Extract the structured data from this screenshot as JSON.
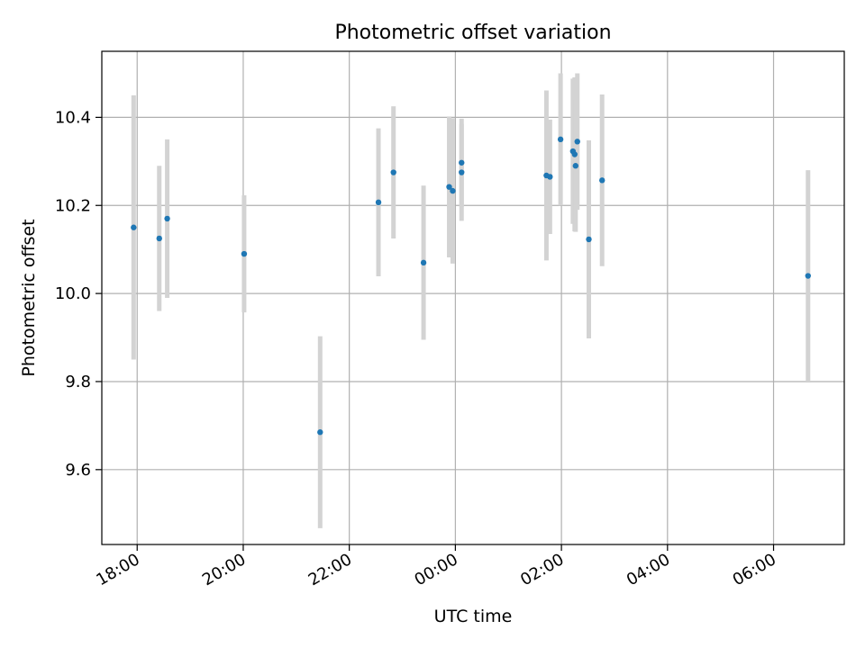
{
  "chart_data": {
    "type": "scatter",
    "title": "Photometric offset variation",
    "xlabel": "UTC time",
    "ylabel": "Photometric offset",
    "x_ticks": [
      "18:00",
      "20:00",
      "22:00",
      "00:00",
      "02:00",
      "04:00",
      "06:00"
    ],
    "y_ticks": [
      "9.6",
      "9.8",
      "10.0",
      "10.2",
      "10.4"
    ],
    "grid": true,
    "xlim": [
      "17:20",
      "07:20"
    ],
    "ylim": [
      9.43,
      10.55
    ],
    "colors": {
      "point": "#1f77b4",
      "errorbar": "#d3d3d3",
      "grid": "#b0b0b0"
    },
    "series": [
      {
        "points": [
          {
            "x": "17:56",
            "y": 10.15,
            "yerr": 0.3
          },
          {
            "x": "18:25",
            "y": 10.125,
            "yerr": 0.165
          },
          {
            "x": "18:34",
            "y": 10.17,
            "yerr": 0.18
          },
          {
            "x": "20:01",
            "y": 10.09,
            "yerr": 0.133
          },
          {
            "x": "21:27",
            "y": 9.685,
            "yerr": 0.218
          },
          {
            "x": "22:33",
            "y": 10.207,
            "yerr": 0.168
          },
          {
            "x": "22:50",
            "y": 10.275,
            "yerr": 0.15
          },
          {
            "x": "23:24",
            "y": 10.07,
            "yerr": 0.175
          },
          {
            "x": "23:53",
            "y": 10.242,
            "yerr": 0.16
          },
          {
            "x": "23:57",
            "y": 10.233,
            "yerr": 0.165
          },
          {
            "x": "00:07",
            "y": 10.297,
            "yerr": 0.1
          },
          {
            "x": "00:07",
            "y": 10.275,
            "yerr": 0.11
          },
          {
            "x": "01:43",
            "y": 10.268,
            "yerr": 0.193
          },
          {
            "x": "01:47",
            "y": 10.265,
            "yerr": 0.13
          },
          {
            "x": "01:59",
            "y": 10.35,
            "yerr": 0.15
          },
          {
            "x": "02:13",
            "y": 10.323,
            "yerr": 0.165
          },
          {
            "x": "02:15",
            "y": 10.316,
            "yerr": 0.175
          },
          {
            "x": "02:16",
            "y": 10.29,
            "yerr": 0.15
          },
          {
            "x": "02:18",
            "y": 10.345,
            "yerr": 0.155
          },
          {
            "x": "02:31",
            "y": 10.123,
            "yerr": 0.225
          },
          {
            "x": "02:46",
            "y": 10.257,
            "yerr": 0.195
          },
          {
            "x": "06:39",
            "y": 10.04,
            "yerr": 0.24
          }
        ]
      }
    ]
  }
}
